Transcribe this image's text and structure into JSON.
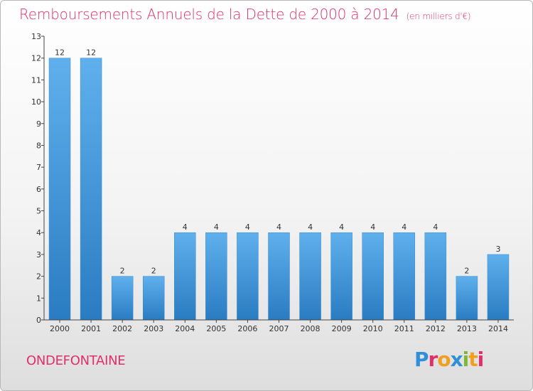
{
  "title": {
    "main": "Remboursements Annuels de la Dette de 2000 à 2014",
    "unit": "(en milliers d'€)"
  },
  "commune": "ONDEFONTAINE",
  "logo": {
    "letters": [
      {
        "ch": "P",
        "color": "#2f8fd8"
      },
      {
        "ch": "r",
        "color": "#e0306a"
      },
      {
        "ch": "o",
        "color": "#f0a020"
      },
      {
        "ch": "x",
        "color": "#2f8fd8"
      },
      {
        "ch": "i",
        "color": "#7cb83a"
      },
      {
        "ch": "t",
        "color": "#f0a020"
      },
      {
        "ch": "i",
        "color": "#e0306a"
      }
    ]
  },
  "colors": {
    "accent": "#e0306a",
    "bar_top": "#5fb0ec",
    "bar_bottom": "#2a7cc2"
  },
  "chart_data": {
    "type": "bar",
    "categories": [
      "2000",
      "2001",
      "2002",
      "2003",
      "2004",
      "2005",
      "2006",
      "2007",
      "2008",
      "2009",
      "2010",
      "2011",
      "2012",
      "2013",
      "2014"
    ],
    "values": [
      12,
      12,
      2,
      2,
      4,
      4,
      4,
      4,
      4,
      4,
      4,
      4,
      4,
      2,
      3
    ],
    "ylim": [
      0,
      13
    ],
    "yticks": [
      "0",
      "1",
      "2",
      "3",
      "4",
      "5",
      "6",
      "7",
      "8",
      "9",
      "10",
      "11",
      "12",
      "13"
    ],
    "grid": false
  }
}
